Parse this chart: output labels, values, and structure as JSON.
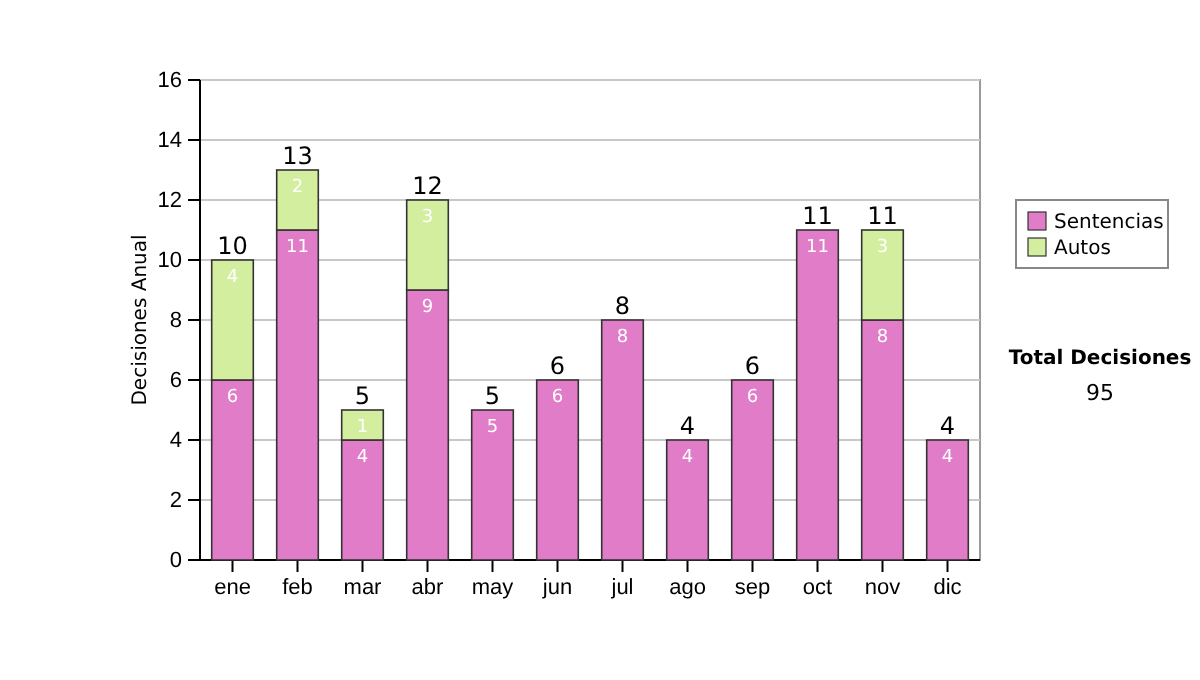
{
  "chart_data": {
    "type": "bar",
    "stacked": true,
    "ylabel": "Decisiones Anual",
    "categories": [
      "ene",
      "feb",
      "mar",
      "abr",
      "may",
      "jun",
      "jul",
      "ago",
      "sep",
      "oct",
      "nov",
      "dic"
    ],
    "series": [
      {
        "name": "Sentencias",
        "color": "#e07cc8",
        "values": [
          6,
          11,
          4,
          9,
          5,
          6,
          8,
          4,
          6,
          11,
          8,
          4
        ],
        "value_labels": [
          "6",
          "11",
          "4",
          "9",
          "5",
          "6",
          "8",
          "4",
          "6",
          "11",
          "8",
          "4"
        ]
      },
      {
        "name": "Autos",
        "color": "#d4eea0",
        "values": [
          4,
          2,
          1,
          3,
          0,
          0,
          0,
          0,
          0,
          0,
          3,
          0
        ],
        "value_labels": [
          "4",
          "2",
          "1",
          "3",
          null,
          null,
          null,
          null,
          null,
          null,
          "3",
          null
        ]
      }
    ],
    "totals": [
      "10",
      "13",
      "5",
      "12",
      "5",
      "6",
      "8",
      "4",
      "6",
      "11",
      "11",
      "4"
    ],
    "ylim": [
      0,
      16
    ],
    "yticks": [
      0,
      2,
      4,
      6,
      8,
      10,
      12,
      14,
      16
    ],
    "grid": "y",
    "legend": "right",
    "annotations": [
      "Total Decisiones",
      "95"
    ]
  }
}
